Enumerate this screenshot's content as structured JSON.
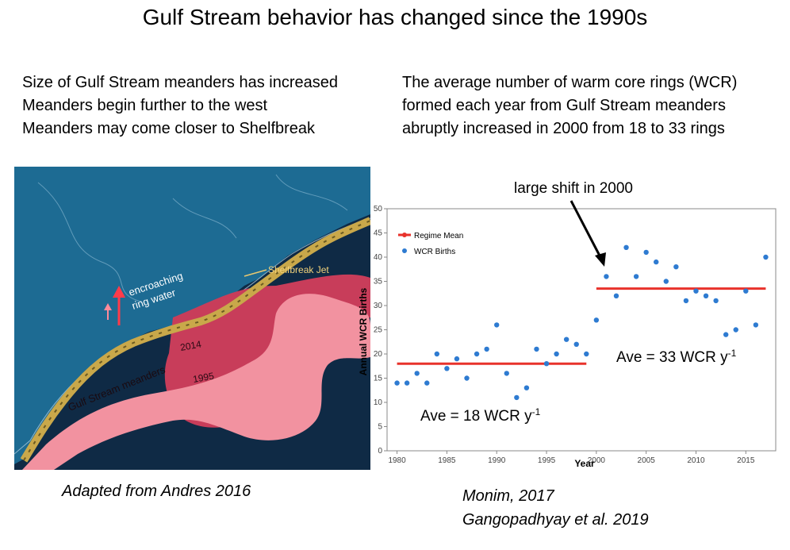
{
  "title": "Gulf Stream behavior has changed since the 1990s",
  "left_bullets": [
    "Size of Gulf Stream meanders has increased",
    "Meanders begin further to the west",
    "Meanders may come closer to Shelfbreak"
  ],
  "right_paragraph": [
    "The average number of warm core rings (WCR)",
    "formed each year from Gulf Stream meanders",
    "abruptly increased in 2000 from 18 to 33 rings"
  ],
  "map": {
    "label_encroaching_1": "encroaching",
    "label_encroaching_2": "ring water",
    "label_shelfbreak": "Shelfbreak Jet",
    "label_2014": "2014",
    "label_1995": "1995",
    "label_meanders": "Gulf Stream meanders",
    "colors": {
      "ocean": "#0f2a45",
      "land": "#1d6b93",
      "meander_2014": "#c83d5a",
      "meander_1995": "#f292a0",
      "jet": "#c9a84a"
    }
  },
  "caption_left": "Adapted from Andres 2016",
  "caption_right": [
    "Monim, 2017",
    "Gangopadhyay et al. 2019"
  ],
  "annotation_shift": "large shift in 2000",
  "annotation_ave18_main": "Ave = 18 WCR y",
  "annotation_ave18_sup": "-1",
  "annotation_ave33_main": "Ave = 33 WCR y",
  "annotation_ave33_sup": "-1",
  "chart_data": {
    "type": "scatter",
    "xlabel": "Year",
    "ylabel": "Annual WCR Births",
    "xlim": [
      1979,
      2018
    ],
    "ylim": [
      0,
      50
    ],
    "xticks": [
      1980,
      1985,
      1990,
      1995,
      2000,
      2005,
      2010,
      2015
    ],
    "yticks": [
      0,
      5,
      10,
      15,
      20,
      25,
      30,
      35,
      40,
      45,
      50
    ],
    "legend": [
      "Regime Mean",
      "WCR Births"
    ],
    "legend_position": "top-left",
    "series": [
      {
        "name": "WCR Births",
        "color": "#2e7bd1",
        "x": [
          1980,
          1981,
          1982,
          1983,
          1984,
          1985,
          1986,
          1987,
          1988,
          1989,
          1990,
          1991,
          1992,
          1993,
          1994,
          1995,
          1996,
          1997,
          1998,
          1999,
          2000,
          2001,
          2002,
          2003,
          2004,
          2005,
          2006,
          2007,
          2008,
          2009,
          2010,
          2011,
          2012,
          2013,
          2014,
          2015,
          2016,
          2017
        ],
        "y": [
          14,
          14,
          16,
          14,
          20,
          17,
          19,
          15,
          20,
          21,
          26,
          16,
          11,
          13,
          21,
          18,
          20,
          23,
          22,
          20,
          27,
          36,
          32,
          42,
          36,
          41,
          39,
          35,
          38,
          31,
          33,
          32,
          31,
          24,
          25,
          33,
          26,
          40
        ]
      }
    ],
    "regime_means": [
      {
        "name": "Regime Mean",
        "color": "#e8322b",
        "x_start": 1980,
        "x_end": 1999,
        "value": 18
      },
      {
        "name": "Regime Mean",
        "color": "#e8322b",
        "x_start": 2000,
        "x_end": 2017,
        "value": 33.5
      }
    ]
  }
}
